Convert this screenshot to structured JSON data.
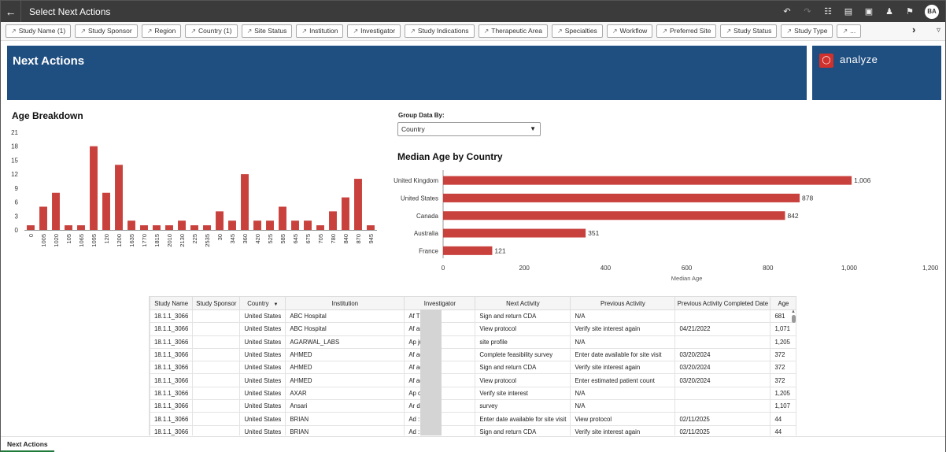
{
  "app": {
    "title": "Select Next Actions",
    "avatar": "BA"
  },
  "filters": [
    "Study Name (1)",
    "Study Sponsor",
    "Region",
    "Country (1)",
    "Site Status",
    "Institution",
    "Investigator",
    "Study Indications",
    "Therapeutic Area",
    "Specialties",
    "Workflow",
    "Preferred Site",
    "Study Status",
    "Study Type",
    "..."
  ],
  "banner": {
    "title": "Next Actions",
    "logo_text": "analyze"
  },
  "age_breakdown": {
    "title": "Age Breakdown",
    "chart_data": {
      "type": "bar",
      "categories": [
        "0",
        "1005",
        "1020",
        "105",
        "1065",
        "1095",
        "120",
        "1200",
        "1635",
        "1770",
        "1815",
        "2010",
        "2130",
        "225",
        "2535",
        "30",
        "345",
        "360",
        "420",
        "525",
        "585",
        "645",
        "675",
        "705",
        "780",
        "840",
        "870",
        "945"
      ],
      "values": [
        1,
        5,
        8,
        1,
        1,
        18,
        8,
        14,
        2,
        1,
        1,
        1,
        2,
        1,
        1,
        4,
        2,
        12,
        2,
        2,
        5,
        2,
        2,
        1,
        4,
        7,
        11,
        1
      ],
      "yticks": [
        0,
        3,
        6,
        9,
        12,
        15,
        18,
        21
      ],
      "ylim": [
        0,
        21
      ],
      "color": "#c9413d"
    }
  },
  "group_by": {
    "label": "Group Data By:",
    "value": "Country"
  },
  "median_age": {
    "title": "Median Age by Country",
    "chart_data": {
      "type": "bar",
      "orientation": "horizontal",
      "categories": [
        "United Kingdom",
        "United States",
        "Canada",
        "Australia",
        "France"
      ],
      "values": [
        1006,
        878,
        842,
        351,
        121
      ],
      "value_labels": [
        "1,006",
        "878",
        "842",
        "351",
        "121"
      ],
      "xticks": [
        "0",
        "200",
        "400",
        "600",
        "800",
        "1,000",
        "1,200"
      ],
      "xlim": [
        0,
        1200
      ],
      "xlabel": "Median Age",
      "color": "#c9413d"
    }
  },
  "table": {
    "columns": [
      "Study Name",
      "Study Sponsor",
      "Country",
      "Institution",
      "Investigator",
      "Next Activity",
      "Previous Activity",
      "Previous Activity Completed Date",
      "Age"
    ],
    "rows": [
      [
        "18.1.1_3066",
        "",
        "United States",
        "ABC Hospital",
        "Af        T",
        "Sign and return CDA",
        "N/A",
        "",
        "681"
      ],
      [
        "18.1.1_3066",
        "",
        "United States",
        "ABC Hospital",
        "Af        ar",
        "View protocol",
        "Verify site interest again",
        "04/21/2022",
        "1,071"
      ],
      [
        "18.1.1_3066",
        "",
        "United States",
        "AGARWAL_LABS",
        "Ap        jul",
        "site profile",
        "N/A",
        "",
        "1,205"
      ],
      [
        "18.1.1_3066",
        "",
        "United States",
        "AHMED",
        "Af        ad",
        "Complete feasibility survey",
        "Enter date available for site visit",
        "03/20/2024",
        "372"
      ],
      [
        "18.1.1_3066",
        "",
        "United States",
        "AHMED",
        "Af        ad",
        "Sign and return CDA",
        "Verify site interest again",
        "03/20/2024",
        "372"
      ],
      [
        "18.1.1_3066",
        "",
        "United States",
        "AHMED",
        "Af        ad",
        "View protocol",
        "Enter estimated patient count",
        "03/20/2024",
        "372"
      ],
      [
        "18.1.1_3066",
        "",
        "United States",
        "AXAR",
        "Ap        os",
        "Verify site interest",
        "N/A",
        "",
        "1,205"
      ],
      [
        "18.1.1_3066",
        "",
        "United States",
        "Ansari",
        "Ar        d",
        "survey",
        "N/A",
        "",
        "1,107"
      ],
      [
        "18.1.1_3066",
        "",
        "United States",
        "BRIAN",
        "Ad        :",
        "Enter date available for site visit",
        "View protocol",
        "02/11/2025",
        "44"
      ],
      [
        "18.1.1_3066",
        "",
        "United States",
        "BRIAN",
        "Ad        :",
        "Sign and return CDA",
        "Verify site interest again",
        "02/11/2025",
        "44"
      ]
    ]
  },
  "bottom_tab": "Next Actions"
}
